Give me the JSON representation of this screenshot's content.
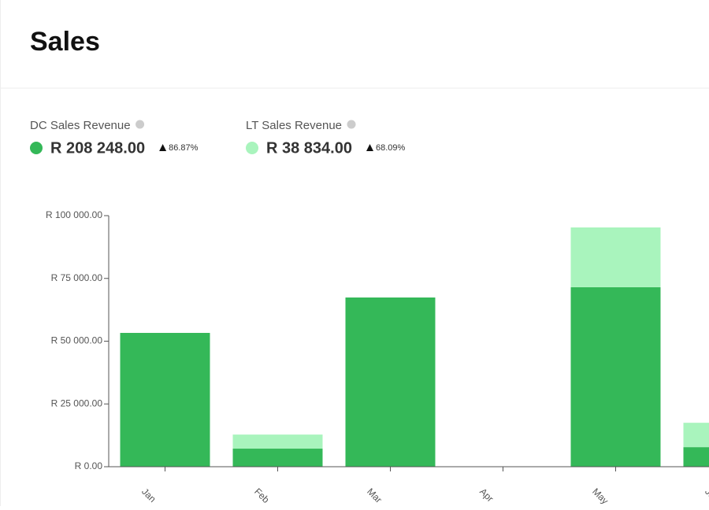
{
  "header": {
    "title": "Sales"
  },
  "summary": [
    {
      "total": "R 208 248.00",
      "change": "86.87%"
    },
    {
      "total": "R 38 834.00",
      "change": "68.09%"
    }
  ],
  "chart_data": {
    "type": "stacked_bar",
    "categories": [
      "Jan",
      "Feb",
      "Mar",
      "Apr",
      "May",
      "Jun"
    ],
    "series": [
      {
        "name": "DC Sales Revenue",
        "color": "#34b858",
        "values": [
          53300,
          7200,
          67400,
          0,
          71500,
          7800
        ]
      },
      {
        "name": "LT Sales Revenue",
        "color": "#a9f4bd",
        "values": [
          0,
          5600,
          0,
          0,
          23800,
          9700
        ]
      }
    ],
    "ylim": [
      0,
      100000
    ],
    "yticks": [
      {
        "value": 0,
        "label": "R 0.00"
      },
      {
        "value": 25000,
        "label": "R 25 000.00"
      },
      {
        "value": 50000,
        "label": "R 50 000.00"
      },
      {
        "value": 75000,
        "label": "R 75 000.00"
      },
      {
        "value": 100000,
        "label": "R 100 000.00"
      }
    ]
  }
}
